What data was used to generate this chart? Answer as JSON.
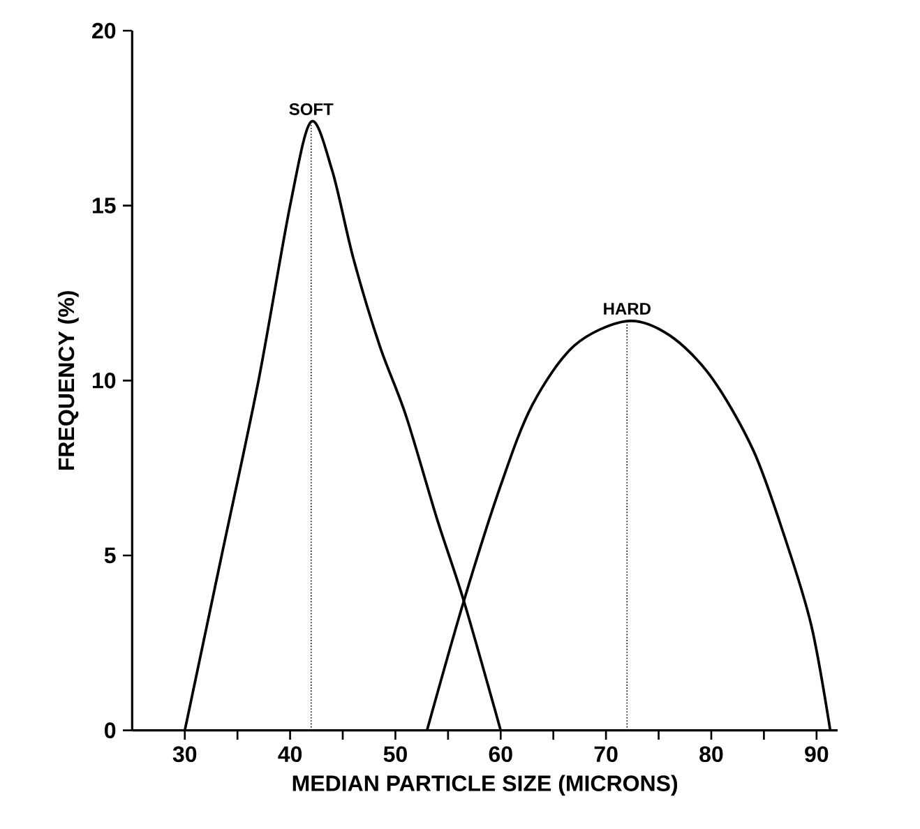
{
  "chart_data": {
    "type": "line",
    "xlabel": "MEDIAN PARTICLE SIZE (MICRONS)",
    "ylabel": "FREQUENCY (%)",
    "xlim": [
      25,
      92
    ],
    "ylim": [
      0,
      20
    ],
    "xticks": [
      30,
      {
        "value": 35,
        "label": null
      },
      40,
      {
        "value": 45,
        "label": null
      },
      50,
      {
        "value": 55,
        "label": null
      },
      60,
      {
        "value": 65,
        "label": null
      },
      70,
      {
        "value": 75,
        "label": null
      },
      80,
      {
        "value": 85,
        "label": null
      },
      90
    ],
    "yticks": [
      0,
      5,
      10,
      15,
      20
    ],
    "series": [
      {
        "color": "#000000",
        "x": [
          30,
          33.5,
          37,
          40,
          42,
          44,
          46,
          48.5,
          51,
          54,
          56.5,
          60
        ],
        "values": [
          0,
          5,
          10,
          15,
          17.4,
          16,
          13.5,
          11,
          9,
          6,
          3.7,
          0
        ]
      },
      {
        "color": "#000000",
        "x": [
          53,
          56.5,
          60,
          63,
          67,
          72,
          76,
          80,
          84,
          87,
          89.5,
          91.3
        ],
        "values": [
          0,
          3.7,
          7,
          9.3,
          11,
          11.7,
          11.3,
          10.1,
          8,
          5.5,
          3,
          0
        ]
      },
      {
        "color": "#000000",
        "line_style": "dotted",
        "x": [
          42,
          42
        ],
        "values": [
          0,
          17.4
        ]
      },
      {
        "color": "#000000",
        "line_style": "dotted",
        "x": [
          72,
          72
        ],
        "values": [
          0,
          11.7
        ]
      }
    ],
    "annotations": [
      {
        "text": "SOFT",
        "x": 42,
        "y": 17.4
      },
      {
        "text": "HARD",
        "x": 72,
        "y": 11.7
      }
    ]
  }
}
